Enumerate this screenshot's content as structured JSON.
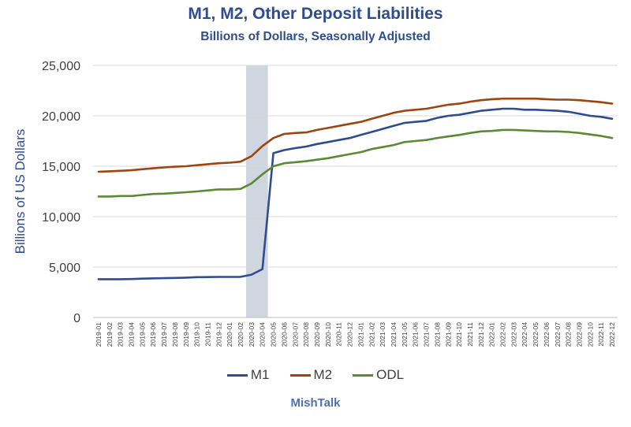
{
  "chart_data": {
    "type": "line",
    "title": "M1, M2, Other Deposit Liabilities",
    "subtitle": "Billions of Dollars, Seasonally Adjusted",
    "xlabel": "",
    "ylabel": "Billions of US Dollars",
    "ylim": [
      0,
      25000
    ],
    "yticks": [
      0,
      5000,
      10000,
      15000,
      20000,
      25000
    ],
    "ytick_labels": [
      "0",
      "5,000",
      "10,000",
      "15,000",
      "20,000",
      "25,000"
    ],
    "grid": true,
    "legend_position": "bottom",
    "shaded_period": [
      "2020-03",
      "2020-04"
    ],
    "categories": [
      "2019-01",
      "2019-02",
      "2019-03",
      "2019-04",
      "2019-05",
      "2019-06",
      "2019-07",
      "2019-08",
      "2019-09",
      "2019-10",
      "2019-11",
      "2019-12",
      "2020-01",
      "2020-02",
      "2020-03",
      "2020-04",
      "2020-05",
      "2020-06",
      "2020-07",
      "2020-08",
      "2020-09",
      "2020-10",
      "2020-11",
      "2020-12",
      "2021-01",
      "2021-02",
      "2021-03",
      "2021-04",
      "2021-05",
      "2021-06",
      "2021-07",
      "2021-08",
      "2021-09",
      "2021-10",
      "2021-11",
      "2021-12",
      "2022-01",
      "2022-02",
      "2022-03",
      "2022-04",
      "2022-05",
      "2022-06",
      "2022-07",
      "2022-08",
      "2022-09",
      "2022-10",
      "2022-11",
      "2022-12"
    ],
    "series": [
      {
        "name": "M1",
        "color": "#2e4c8f",
        "values": [
          3800,
          3800,
          3800,
          3810,
          3850,
          3880,
          3900,
          3920,
          3950,
          4000,
          4010,
          4020,
          4020,
          4030,
          4250,
          4800,
          16300,
          16600,
          16800,
          16950,
          17200,
          17400,
          17600,
          17800,
          18100,
          18400,
          18700,
          19000,
          19300,
          19400,
          19500,
          19800,
          20000,
          20100,
          20300,
          20500,
          20600,
          20700,
          20700,
          20600,
          20600,
          20550,
          20500,
          20400,
          20200,
          20000,
          19900,
          19700
        ]
      },
      {
        "name": "M2",
        "color": "#a0440e",
        "values": [
          14450,
          14500,
          14550,
          14600,
          14700,
          14800,
          14880,
          14950,
          15000,
          15100,
          15200,
          15300,
          15350,
          15450,
          16000,
          17000,
          17800,
          18200,
          18300,
          18350,
          18600,
          18800,
          19000,
          19200,
          19400,
          19700,
          20000,
          20300,
          20500,
          20600,
          20700,
          20900,
          21100,
          21200,
          21400,
          21550,
          21650,
          21700,
          21700,
          21700,
          21700,
          21650,
          21600,
          21600,
          21550,
          21450,
          21350,
          21200
        ]
      },
      {
        "name": "ODL",
        "color": "#5a8a36",
        "values": [
          12000,
          12000,
          12050,
          12050,
          12150,
          12250,
          12280,
          12350,
          12420,
          12500,
          12600,
          12700,
          12700,
          12750,
          13300,
          14200,
          15000,
          15300,
          15400,
          15500,
          15650,
          15800,
          16000,
          16200,
          16400,
          16700,
          16900,
          17100,
          17400,
          17500,
          17600,
          17800,
          17950,
          18100,
          18300,
          18450,
          18500,
          18600,
          18600,
          18550,
          18500,
          18450,
          18450,
          18400,
          18300,
          18150,
          18000,
          17800
        ]
      }
    ]
  },
  "source": "MishTalk"
}
